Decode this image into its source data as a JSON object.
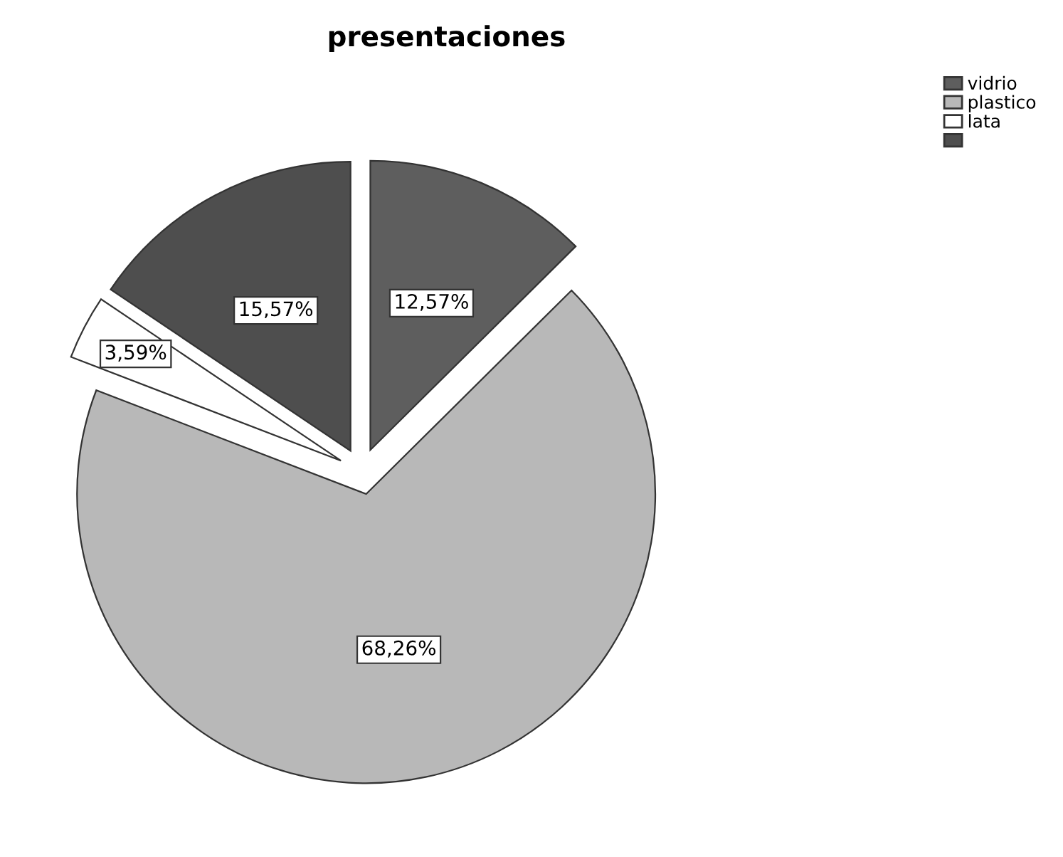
{
  "chart_data": {
    "type": "pie",
    "title": "presentaciones",
    "categories": [
      "vidrio",
      "plastico",
      "lata",
      null
    ],
    "values": [
      12.57,
      68.26,
      3.59,
      15.57
    ],
    "colors": [
      "#5e5e5e",
      "#b8b8b8",
      "#ffffff",
      "#4e4e4e"
    ],
    "value_labels": [
      "12,57%",
      "68,26%",
      "3,59%",
      "15,57%"
    ],
    "legend": "top right"
  }
}
